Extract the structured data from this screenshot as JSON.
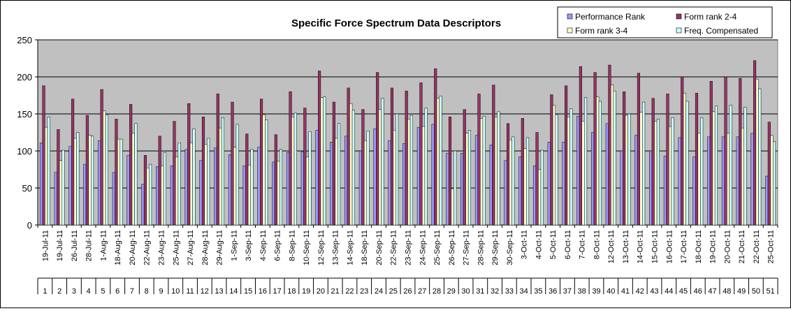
{
  "chart_data": {
    "type": "bar",
    "title": "Specific Force Spectrum Data Descriptors",
    "xlabel": "",
    "ylabel": "",
    "ylim": [
      0,
      250
    ],
    "yticks": [
      0,
      50,
      100,
      150,
      200,
      250
    ],
    "grid": true,
    "legend_position": "top-right",
    "categories": [
      "1",
      "2",
      "3",
      "4",
      "5",
      "6",
      "7",
      "8",
      "9",
      "10",
      "11",
      "12",
      "13",
      "14",
      "15",
      "16",
      "17",
      "18",
      "19",
      "20",
      "21",
      "22",
      "23",
      "24",
      "25",
      "26",
      "27",
      "28",
      "29",
      "30",
      "31",
      "32",
      "33",
      "34",
      "35",
      "36",
      "37",
      "38",
      "39",
      "40",
      "41",
      "42",
      "43",
      "44",
      "45",
      "46",
      "47",
      "48",
      "49",
      "50",
      "51"
    ],
    "dates": [
      "19-Jul-11",
      "19-Jul-11",
      "26-Jul-11",
      "28-Jul-11",
      "1-Aug-11",
      "18-Aug-11",
      "20-Aug-11",
      "22-Aug-11",
      "23-Aug-11",
      "25-Aug-11",
      "27-Aug-11",
      "28-Aug-11",
      "29-Aug-11",
      "1-Sep-11",
      "3-Sep-11",
      "4-Sep-11",
      "6-Sep-11",
      "8-Sep-11",
      "10-Sep-11",
      "12-Sep-11",
      "13-Sep-11",
      "14-Sep-11",
      "18-Sep-11",
      "20-Sep-11",
      "22-Sep-11",
      "23-Sep-11",
      "24-Sep-11",
      "25-Sep-11",
      "26-Sep-11",
      "27-Sep-11",
      "28-Sep-11",
      "29-Sep-11",
      "30-Sep-11",
      "3-Oct-11",
      "4-Oct-11",
      "5-Oct-11",
      "6-Oct-11",
      "7-Oct-11",
      "8-Oct-11",
      "12-Oct-11",
      "13-Oct-11",
      "14-Oct-11",
      "15-Oct-11",
      "16-Oct-11",
      "17-Oct-11",
      "18-Oct-11",
      "19-Oct-11",
      "20-Oct-11",
      "21-Oct-11",
      "22-Oct-11",
      "25-Oct-11"
    ],
    "series": [
      {
        "name": "Performance Rank",
        "color": "#9999ff",
        "values": [
          111,
          71,
          106,
          82,
          114,
          71,
          94,
          55,
          79,
          80,
          102,
          87,
          104,
          95,
          80,
          105,
          85,
          98,
          99,
          128,
          112,
          120,
          100,
          130,
          114,
          110,
          132,
          136,
          97,
          97,
          121,
          108,
          87,
          92,
          80,
          112,
          112,
          147,
          125,
          137,
          100,
          121,
          100,
          93,
          118,
          92,
          119,
          119,
          119,
          124,
          66
        ]
      },
      {
        "name": "Form rank 2-4",
        "color": "#993366",
        "values": [
          188,
          129,
          170,
          148,
          183,
          143,
          163,
          94,
          120,
          140,
          164,
          146,
          177,
          166,
          123,
          170,
          122,
          180,
          158,
          208,
          166,
          185,
          156,
          206,
          185,
          181,
          192,
          211,
          146,
          156,
          177,
          189,
          137,
          144,
          125,
          176,
          188,
          214,
          206,
          216,
          180,
          205,
          171,
          177,
          200,
          178,
          194,
          200,
          198,
          222,
          139
        ]
      },
      {
        "name": "Form rank 3-4",
        "color": "#ffffcc",
        "values": [
          132,
          87,
          117,
          121,
          154,
          116,
          124,
          77,
          80,
          92,
          111,
          109,
          131,
          105,
          81,
          149,
          86,
          146,
          92,
          172,
          117,
          164,
          114,
          156,
          128,
          143,
          133,
          171,
          49,
          124,
          144,
          146,
          115,
          103,
          75,
          162,
          146,
          140,
          173,
          189,
          148,
          152,
          140,
          133,
          178,
          124,
          153,
          124,
          131,
          197,
          121
        ]
      },
      {
        "name": "Freq. Compensated",
        "color": "#ccffff",
        "values": [
          146,
          101,
          125,
          120,
          149,
          116,
          137,
          82,
          98,
          111,
          130,
          117,
          145,
          136,
          102,
          142,
          102,
          151,
          126,
          173,
          137,
          155,
          127,
          171,
          150,
          148,
          158,
          174,
          100,
          128,
          147,
          153,
          119,
          118,
          101,
          149,
          157,
          172,
          167,
          181,
          150,
          166,
          143,
          145,
          167,
          145,
          161,
          162,
          159,
          184,
          113
        ]
      }
    ]
  }
}
